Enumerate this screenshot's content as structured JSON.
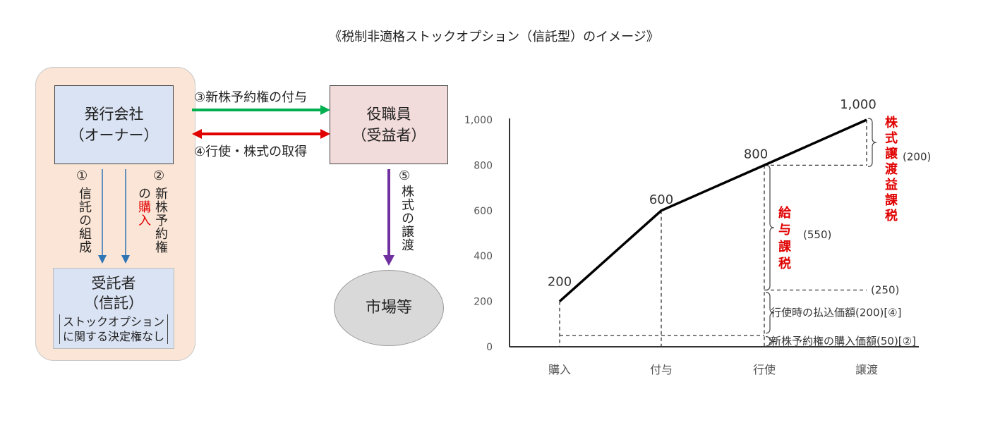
{
  "title": "《税制非適格ストックオプション（信託型）のイメージ》",
  "diagram": {
    "issuer": {
      "line1": "発行会社",
      "line2": "（オーナー）"
    },
    "trustee": {
      "line1": "受託者",
      "line2": "（信託）",
      "note_line1": "ストックオプション",
      "note_line2": "に関する決定権なし"
    },
    "officer": {
      "line1": "役職員",
      "line2": "（受益者）"
    },
    "market": {
      "label": "市場等"
    },
    "step1": {
      "num": "①",
      "text": "信託の組成"
    },
    "step2": {
      "num": "②",
      "text_black": "新株予約権",
      "text_mid": "の",
      "text_red": "購入"
    },
    "step3": {
      "text": "③新株予約権の付与"
    },
    "step4": {
      "text": "④行使・株式の取得"
    },
    "step5": {
      "num": "⑤",
      "text": "株式の譲渡"
    },
    "colors": {
      "arrow_down": "#2e75b6",
      "arrow_green": "#00b050",
      "arrow_red": "#e00000",
      "arrow_purple": "#7030a0",
      "highlight": "#e00000"
    }
  },
  "chart_data": {
    "type": "line",
    "categories": [
      "購入",
      "付与",
      "行使",
      "譲渡"
    ],
    "values": [
      200,
      600,
      800,
      1000
    ],
    "point_labels": [
      "200",
      "600",
      "800",
      "1,000"
    ],
    "yticks": [
      0,
      200,
      400,
      600,
      800,
      1000
    ],
    "ytick_labels": [
      "0",
      "200",
      "400",
      "600",
      "800",
      "1,000"
    ],
    "ylim": [
      0,
      1000
    ],
    "annotations": {
      "stock_gain_tax": "株式譲渡益課税",
      "stock_gain_amount": "(200)",
      "salary_tax": "給与課税",
      "salary_amount": "(550)",
      "level_250": "(250)",
      "exercise_price": "行使時の払込価額(200)[④]",
      "purchase_price": "新株予約権の購入価額(50)[②]"
    }
  }
}
